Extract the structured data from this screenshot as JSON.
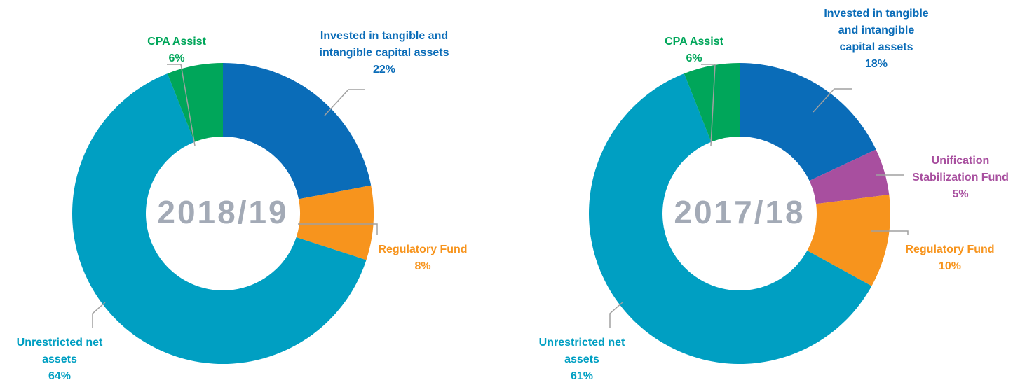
{
  "chart_data": [
    {
      "type": "pie",
      "title": "2018/19",
      "categories": [
        "Invested in tangible and intangible capital assets",
        "Regulatory Fund",
        "Unrestricted net assets",
        "CPA Assist"
      ],
      "values": [
        22,
        8,
        64,
        6
      ],
      "value_labels": [
        "22%",
        "8%",
        "64%",
        "6%"
      ],
      "colors": [
        "#0a6cb8",
        "#f7941d",
        "#009fc2",
        "#00a65a"
      ]
    },
    {
      "type": "pie",
      "title": "2017/18",
      "categories": [
        "Invested in tangible and intangible capital assets",
        "Unification Stabilization Fund",
        "Regulatory Fund",
        "Unrestricted net assets",
        "CPA Assist"
      ],
      "values": [
        18,
        5,
        10,
        61,
        6
      ],
      "value_labels": [
        "18%",
        "5%",
        "10%",
        "61%",
        "6%"
      ],
      "colors": [
        "#0a6cb8",
        "#a84f9f",
        "#f7941d",
        "#009fc2",
        "#00a65a"
      ]
    }
  ]
}
